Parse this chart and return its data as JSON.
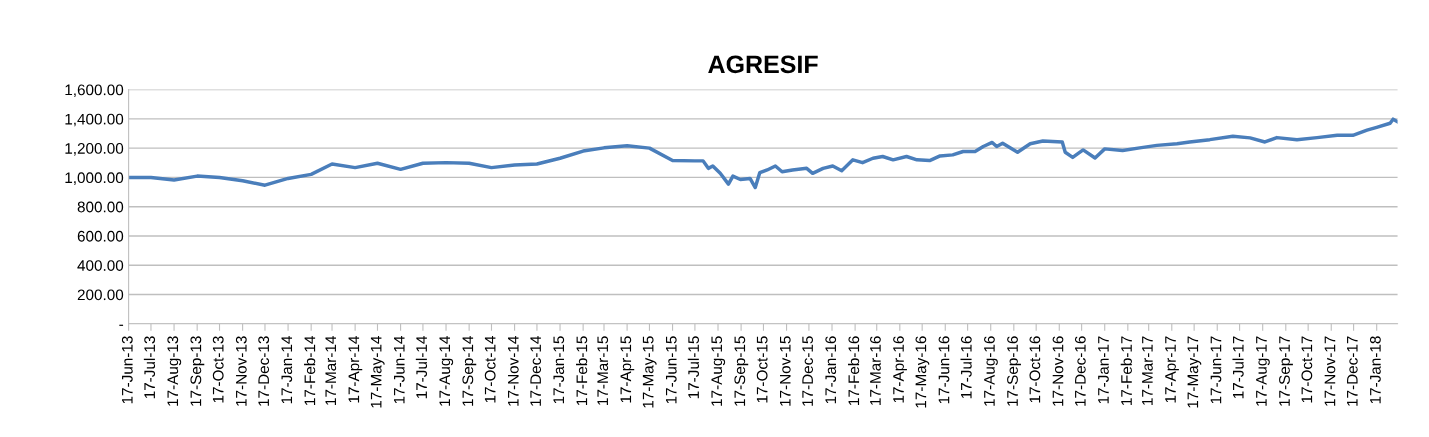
{
  "chart_data": {
    "type": "line",
    "title": "AGRESIF",
    "x": [
      "2013-06-17",
      "2013-07-17",
      "2013-08-17",
      "2013-09-17",
      "2013-10-17",
      "2013-11-17",
      "2013-12-17",
      "2014-01-17",
      "2014-02-17",
      "2014-03-17",
      "2014-04-17",
      "2014-05-17",
      "2014-06-17",
      "2014-07-17",
      "2014-08-17",
      "2014-09-17",
      "2014-10-17",
      "2014-11-17",
      "2014-12-17",
      "2015-01-17",
      "2015-02-17",
      "2015-03-17",
      "2015-04-17",
      "2015-05-17",
      "2015-06-17",
      "2015-07-17",
      "2015-07-28",
      "2015-08-04",
      "2015-08-10",
      "2015-08-20",
      "2015-08-31",
      "2015-09-06",
      "2015-09-16",
      "2015-09-29",
      "2015-10-06",
      "2015-10-12",
      "2015-10-22",
      "2015-11-02",
      "2015-11-11",
      "2015-11-25",
      "2015-12-14",
      "2015-12-22",
      "2016-01-05",
      "2016-01-18",
      "2016-01-30",
      "2016-02-14",
      "2016-02-27",
      "2016-03-12",
      "2016-03-25",
      "2016-04-08",
      "2016-04-26",
      "2016-05-10",
      "2016-05-27",
      "2016-06-10",
      "2016-06-27",
      "2016-07-11",
      "2016-07-27",
      "2016-08-07",
      "2016-08-19",
      "2016-08-25",
      "2016-09-02",
      "2016-09-22",
      "2016-10-09",
      "2016-10-26",
      "2016-11-21",
      "2016-11-25",
      "2016-12-05",
      "2016-12-19",
      "2017-01-04",
      "2017-01-17",
      "2017-02-10",
      "2017-03-05",
      "2017-03-28",
      "2017-04-24",
      "2017-05-11",
      "2017-06-07",
      "2017-07-08",
      "2017-07-31",
      "2017-08-20",
      "2017-09-05",
      "2017-10-02",
      "2017-10-29",
      "2017-11-25",
      "2017-12-16",
      "2018-01-04",
      "2018-01-17",
      "2018-02-04",
      "2018-02-08",
      "2018-02-14"
    ],
    "series": [
      {
        "color": "#4a7ebb",
        "values": [
          1000,
          1000,
          982,
          1009,
          1000,
          977,
          947,
          993,
          1021,
          1092,
          1067,
          1097,
          1055,
          1097,
          1101,
          1097,
          1067,
          1085,
          1092,
          1131,
          1180,
          1202,
          1216,
          1200,
          1115,
          1113,
          1113,
          1062,
          1078,
          1028,
          954,
          1009,
          986,
          993,
          931,
          1032,
          1051,
          1078,
          1039,
          1051,
          1062,
          1028,
          1062,
          1078,
          1046,
          1120,
          1101,
          1131,
          1143,
          1120,
          1143,
          1120,
          1115,
          1147,
          1154,
          1177,
          1177,
          1211,
          1239,
          1211,
          1234,
          1172,
          1230,
          1249,
          1242,
          1172,
          1137,
          1188,
          1133,
          1195,
          1184,
          1202,
          1219,
          1230,
          1242,
          1258,
          1281,
          1270,
          1242,
          1272,
          1258,
          1272,
          1288,
          1288,
          1323,
          1342,
          1370,
          1398,
          1381
        ]
      }
    ],
    "xlim": [
      "2013-06-17",
      "2018-02-14"
    ],
    "xticks": [
      {
        "value": "2013-06-17",
        "label": "17-Jun-13"
      },
      {
        "value": "2013-07-17",
        "label": "17-Jul-13"
      },
      {
        "value": "2013-08-17",
        "label": "17-Aug-13"
      },
      {
        "value": "2013-09-17",
        "label": "17-Sep-13"
      },
      {
        "value": "2013-10-17",
        "label": "17-Oct-13"
      },
      {
        "value": "2013-11-17",
        "label": "17-Nov-13"
      },
      {
        "value": "2013-12-17",
        "label": "17-Dec-13"
      },
      {
        "value": "2014-01-17",
        "label": "17-Jan-14"
      },
      {
        "value": "2014-02-17",
        "label": "17-Feb-14"
      },
      {
        "value": "2014-03-17",
        "label": "17-Mar-14"
      },
      {
        "value": "2014-04-17",
        "label": "17-Apr-14"
      },
      {
        "value": "2014-05-17",
        "label": "17-May-14"
      },
      {
        "value": "2014-06-17",
        "label": "17-Jun-14"
      },
      {
        "value": "2014-07-17",
        "label": "17-Jul-14"
      },
      {
        "value": "2014-08-17",
        "label": "17-Aug-14"
      },
      {
        "value": "2014-09-17",
        "label": "17-Sep-14"
      },
      {
        "value": "2014-10-17",
        "label": "17-Oct-14"
      },
      {
        "value": "2014-11-17",
        "label": "17-Nov-14"
      },
      {
        "value": "2014-12-17",
        "label": "17-Dec-14"
      },
      {
        "value": "2015-01-17",
        "label": "17-Jan-15"
      },
      {
        "value": "2015-02-17",
        "label": "17-Feb-15"
      },
      {
        "value": "2015-03-17",
        "label": "17-Mar-15"
      },
      {
        "value": "2015-04-17",
        "label": "17-Apr-15"
      },
      {
        "value": "2015-05-17",
        "label": "17-May-15"
      },
      {
        "value": "2015-06-17",
        "label": "17-Jun-15"
      },
      {
        "value": "2015-07-17",
        "label": "17-Jul-15"
      },
      {
        "value": "2015-08-17",
        "label": "17-Aug-15"
      },
      {
        "value": "2015-09-17",
        "label": "17-Sep-15"
      },
      {
        "value": "2015-10-17",
        "label": "17-Oct-15"
      },
      {
        "value": "2015-11-17",
        "label": "17-Nov-15"
      },
      {
        "value": "2015-12-17",
        "label": "17-Dec-15"
      },
      {
        "value": "2016-01-17",
        "label": "17-Jan-16"
      },
      {
        "value": "2016-02-17",
        "label": "17-Feb-16"
      },
      {
        "value": "2016-03-17",
        "label": "17-Mar-16"
      },
      {
        "value": "2016-04-17",
        "label": "17-Apr-16"
      },
      {
        "value": "2016-05-17",
        "label": "17-May-16"
      },
      {
        "value": "2016-06-17",
        "label": "17-Jun-16"
      },
      {
        "value": "2016-07-17",
        "label": "17-Jul-16"
      },
      {
        "value": "2016-08-17",
        "label": "17-Aug-16"
      },
      {
        "value": "2016-09-17",
        "label": "17-Sep-16"
      },
      {
        "value": "2016-10-17",
        "label": "17-Oct-16"
      },
      {
        "value": "2016-11-17",
        "label": "17-Nov-16"
      },
      {
        "value": "2016-12-17",
        "label": "17-Dec-16"
      },
      {
        "value": "2017-01-17",
        "label": "17-Jan-17"
      },
      {
        "value": "2017-02-17",
        "label": "17-Feb-17"
      },
      {
        "value": "2017-03-17",
        "label": "17-Mar-17"
      },
      {
        "value": "2017-04-17",
        "label": "17-Apr-17"
      },
      {
        "value": "2017-05-17",
        "label": "17-May-17"
      },
      {
        "value": "2017-06-17",
        "label": "17-Jun-17"
      },
      {
        "value": "2017-07-17",
        "label": "17-Jul-17"
      },
      {
        "value": "2017-08-17",
        "label": "17-Aug-17"
      },
      {
        "value": "2017-09-17",
        "label": "17-Sep-17"
      },
      {
        "value": "2017-10-17",
        "label": "17-Oct-17"
      },
      {
        "value": "2017-11-17",
        "label": "17-Nov-17"
      },
      {
        "value": "2017-12-17",
        "label": "17-Dec-17"
      },
      {
        "value": "2018-01-17",
        "label": "17-Jan-18"
      }
    ],
    "ylim": [
      0,
      1600
    ],
    "yticks": [
      {
        "value": 0,
        "label": "-"
      },
      {
        "value": 200,
        "label": "200.00"
      },
      {
        "value": 400,
        "label": "400.00"
      },
      {
        "value": 600,
        "label": "600.00"
      },
      {
        "value": 800,
        "label": "800.00"
      },
      {
        "value": 1000,
        "label": "1,000.00"
      },
      {
        "value": 1200,
        "label": "1,200.00"
      },
      {
        "value": 1400,
        "label": "1,400.00"
      },
      {
        "value": 1600,
        "label": "1,600.00"
      }
    ],
    "grid": "y",
    "line_style": "solid",
    "marker": "none"
  }
}
